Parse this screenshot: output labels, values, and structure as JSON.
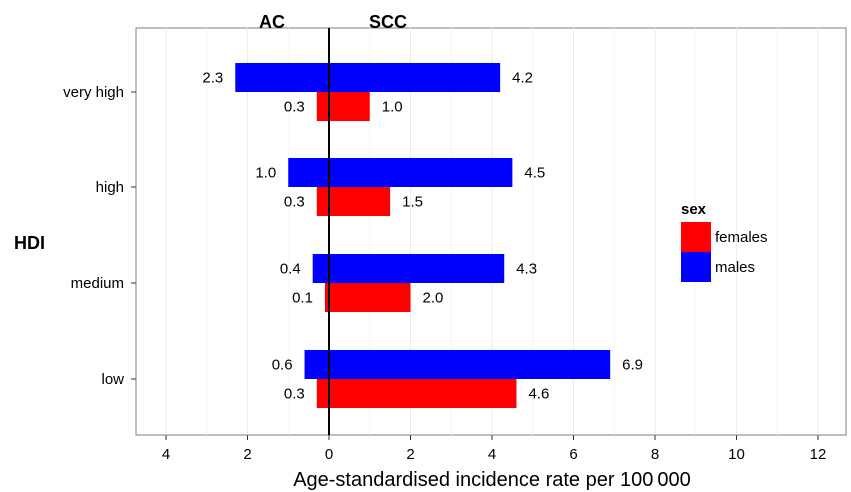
{
  "chart_data": {
    "type": "bar",
    "orientation": "horizontal",
    "top_labels": {
      "left": "AC",
      "right": "SCC"
    },
    "ylabel": "HDI",
    "xlabel": "Age-standardised incidence rate per 100 000",
    "xlim": [
      -4.5,
      12.5
    ],
    "x_ticks": [
      -4,
      -2,
      0,
      2,
      4,
      6,
      8,
      10,
      12
    ],
    "x_tick_labels": [
      "4",
      "2",
      "0",
      "2",
      "4",
      "6",
      "8",
      "10",
      "12"
    ],
    "categories": [
      "very high",
      "high",
      "medium",
      "low"
    ],
    "series": [
      {
        "name": "males",
        "color": "#0000ff",
        "ac": [
          2.3,
          1.0,
          0.4,
          0.6
        ],
        "scc": [
          4.2,
          4.5,
          4.3,
          6.9
        ],
        "ac_labels": [
          "2.3",
          "1.0",
          "0.4",
          "0.6"
        ],
        "scc_labels": [
          "4.2",
          "4.5",
          "4.3",
          "6.9"
        ]
      },
      {
        "name": "females",
        "color": "#ff0000",
        "ac": [
          0.3,
          0.3,
          0.1,
          0.3
        ],
        "scc": [
          1.0,
          1.5,
          2.0,
          4.6
        ],
        "ac_labels": [
          "0.3",
          "0.3",
          "0.1",
          "0.3"
        ],
        "scc_labels": [
          "1.0",
          "1.5",
          "2.0",
          "4.6"
        ]
      }
    ],
    "legend": {
      "title": "sex",
      "position": "right",
      "items": [
        {
          "label": "females",
          "color": "#ff0000"
        },
        {
          "label": "males",
          "color": "#0000ff"
        }
      ]
    },
    "grid": true
  }
}
